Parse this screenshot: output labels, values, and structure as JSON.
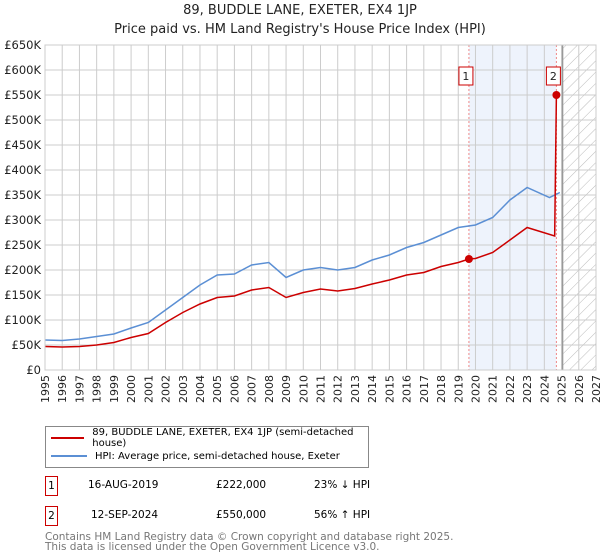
{
  "title": "89, BUDDLE LANE, EXETER, EX4 1JP",
  "subtitle": "Price paid vs. HM Land Registry's House Price Index (HPI)",
  "chart_data": {
    "type": "line",
    "xlim": [
      1995,
      2027
    ],
    "ylim": [
      0,
      650000
    ],
    "yticks": [
      {
        "v": 0,
        "l": "£0"
      },
      {
        "v": 50000,
        "l": "£50K"
      },
      {
        "v": 100000,
        "l": "£100K"
      },
      {
        "v": 150000,
        "l": "£150K"
      },
      {
        "v": 200000,
        "l": "£200K"
      },
      {
        "v": 250000,
        "l": "£250K"
      },
      {
        "v": 300000,
        "l": "£300K"
      },
      {
        "v": 350000,
        "l": "£350K"
      },
      {
        "v": 400000,
        "l": "£400K"
      },
      {
        "v": 450000,
        "l": "£450K"
      },
      {
        "v": 500000,
        "l": "£500K"
      },
      {
        "v": 550000,
        "l": "£550K"
      },
      {
        "v": 600000,
        "l": "£600K"
      },
      {
        "v": 650000,
        "l": "£650K"
      }
    ],
    "xticks": [
      "1995",
      "1996",
      "1997",
      "1998",
      "1999",
      "2000",
      "2001",
      "2002",
      "2003",
      "2004",
      "2005",
      "2006",
      "2007",
      "2008",
      "2009",
      "2010",
      "2011",
      "2012",
      "2013",
      "2014",
      "2015",
      "2016",
      "2017",
      "2018",
      "2019",
      "2020",
      "2021",
      "2022",
      "2023",
      "2024",
      "2025",
      "2026",
      "2027"
    ],
    "series": [
      {
        "name": "89, BUDDLE LANE, EXETER, EX4 1JP (semi-detached house)",
        "color": "#cc0000",
        "x": [
          1995,
          1996,
          1997,
          1998,
          1999,
          2000,
          2001,
          2002,
          2003,
          2004,
          2005,
          2006,
          2007,
          2008,
          2009,
          2010,
          2011,
          2012,
          2013,
          2014,
          2015,
          2016,
          2017,
          2018,
          2019,
          2019.62,
          2020,
          2021,
          2022,
          2023,
          2024.6,
          2024.7
        ],
        "y": [
          47000,
          46000,
          47000,
          50000,
          55000,
          65000,
          73000,
          95000,
          115000,
          132000,
          145000,
          148000,
          160000,
          165000,
          145000,
          155000,
          162000,
          158000,
          163000,
          172000,
          180000,
          190000,
          195000,
          207000,
          215000,
          222000,
          223000,
          235000,
          260000,
          285000,
          268000,
          550000
        ]
      },
      {
        "name": "HPI: Average price, semi-detached house, Exeter",
        "color": "#5b8fd4",
        "x": [
          1995,
          1996,
          1997,
          1998,
          1999,
          2000,
          2001,
          2002,
          2003,
          2004,
          2005,
          2006,
          2007,
          2008,
          2009,
          2010,
          2011,
          2012,
          2013,
          2014,
          2015,
          2016,
          2017,
          2018,
          2019,
          2020,
          2021,
          2022,
          2023,
          2024.3,
          2024.9
        ],
        "y": [
          60000,
          59000,
          62000,
          67000,
          72000,
          84000,
          95000,
          120000,
          145000,
          170000,
          190000,
          192000,
          210000,
          215000,
          185000,
          200000,
          205000,
          200000,
          205000,
          220000,
          230000,
          245000,
          255000,
          270000,
          285000,
          290000,
          305000,
          340000,
          365000,
          345000,
          355000
        ]
      }
    ],
    "sales": [
      {
        "label": "1",
        "x": 2019.62,
        "y": 222000,
        "date": "16-AUG-2019",
        "price": "£222,000",
        "hpi": "23% ↓ HPI"
      },
      {
        "label": "2",
        "x": 2024.7,
        "y": 550000,
        "date": "12-SEP-2024",
        "price": "£550,000",
        "hpi": "56% ↑ HPI"
      }
    ],
    "forecast_start": 2025
  },
  "footer": [
    "Contains HM Land Registry data © Crown copyright and database right 2025.",
    "This data is licensed under the Open Government Licence v3.0."
  ]
}
